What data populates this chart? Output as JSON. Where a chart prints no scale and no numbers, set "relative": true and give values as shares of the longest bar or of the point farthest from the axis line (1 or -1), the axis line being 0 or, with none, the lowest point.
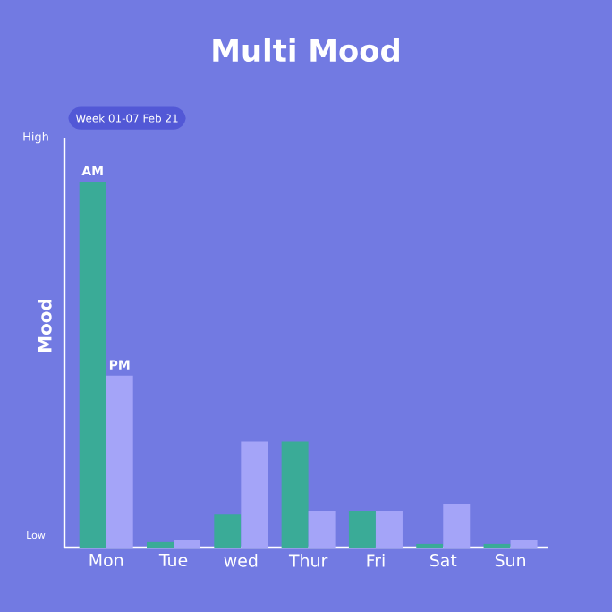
{
  "chart_data": {
    "type": "bar",
    "title": "Multi Mood",
    "subtitle": "Week 01-07 Feb 21",
    "ylabel": "Mood",
    "relative": true,
    "categories": [
      "Mon",
      "Tue",
      "wed",
      "Thur",
      "Fri",
      "Sat",
      "Sun"
    ],
    "series": [
      {
        "name": "AM",
        "color": "#3aab97",
        "values": [
          1,
          0.015,
          0.09,
          0.29,
          0.1,
          0.01,
          0.01
        ]
      },
      {
        "name": "PM",
        "color": "#a4a4f8",
        "values": [
          0.47,
          0.02,
          0.29,
          0.1,
          0.1,
          0.12,
          0.02
        ]
      }
    ],
    "annotations": [
      "High",
      "Low"
    ]
  }
}
